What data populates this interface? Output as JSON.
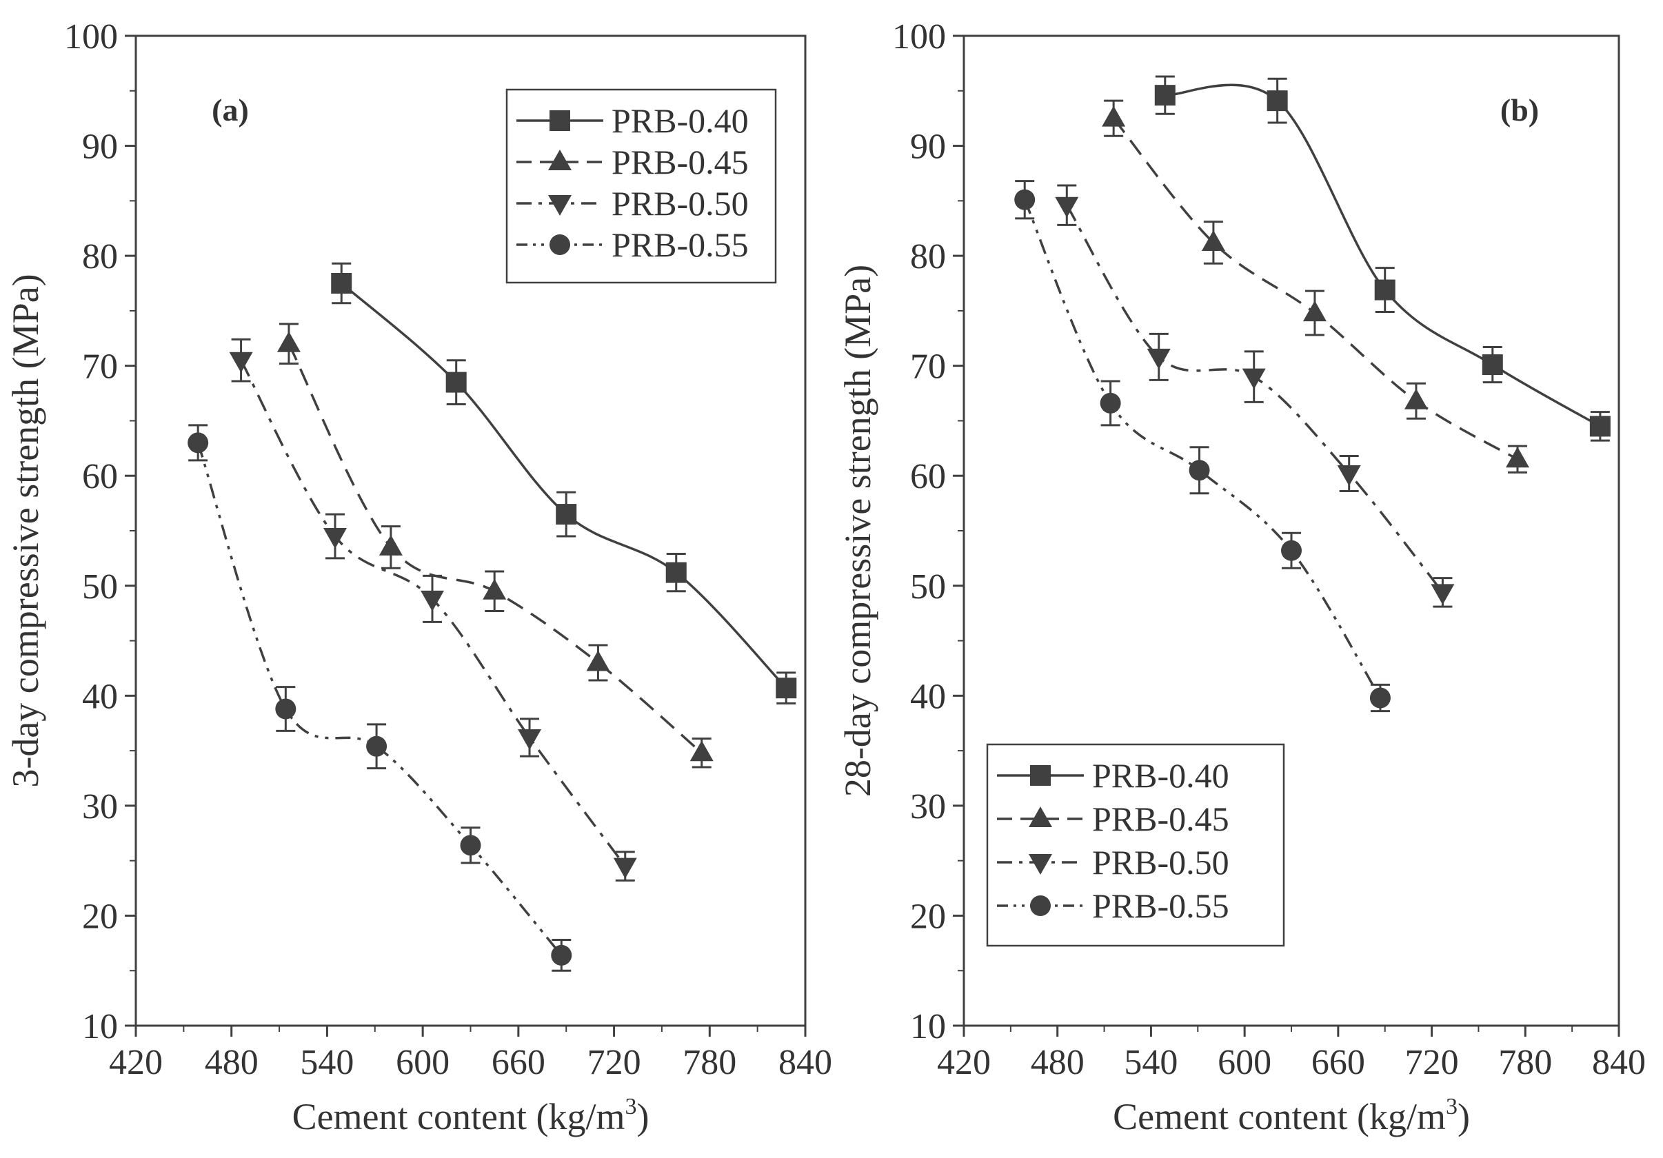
{
  "chart_data": [
    {
      "type": "line",
      "panel_label": "(a)",
      "xlabel": "Cement content (kg/m",
      "xlabel_superscript": "3",
      "xlabel_close": ")",
      "ylabel": "3-day compressive strength (MPa)",
      "xlim": [
        420,
        840
      ],
      "ylim": [
        10,
        100
      ],
      "xticks": [
        420,
        480,
        540,
        600,
        660,
        720,
        780,
        840
      ],
      "yticks": [
        10,
        20,
        30,
        40,
        50,
        60,
        70,
        80,
        90,
        100
      ],
      "legend_position": "top-right",
      "series": [
        {
          "name": "PRB-0.40",
          "marker": "square",
          "line_style": "solid",
          "x": [
            549,
            621,
            690,
            759,
            828
          ],
          "y": [
            77.5,
            68.5,
            56.5,
            51.2,
            40.7
          ],
          "error": [
            1.8,
            2.0,
            2.0,
            1.7,
            1.4
          ]
        },
        {
          "name": "PRB-0.45",
          "marker": "triangle-up",
          "line_style": "dash",
          "x": [
            516,
            580,
            645,
            710,
            775
          ],
          "y": [
            72.0,
            53.5,
            49.5,
            43.0,
            34.8
          ],
          "error": [
            1.8,
            1.9,
            1.8,
            1.6,
            1.3
          ]
        },
        {
          "name": "PRB-0.50",
          "marker": "triangle-down",
          "line_style": "dash-dot",
          "x": [
            486,
            545,
            606,
            667,
            727
          ],
          "y": [
            70.5,
            54.5,
            48.8,
            36.2,
            24.5
          ],
          "error": [
            1.9,
            2.0,
            2.1,
            1.7,
            1.3
          ]
        },
        {
          "name": "PRB-0.55",
          "marker": "circle",
          "line_style": "dash-dot-dot",
          "x": [
            459,
            514,
            571,
            630,
            687
          ],
          "y": [
            63.0,
            38.8,
            35.4,
            26.4,
            16.4
          ],
          "error": [
            1.6,
            2.0,
            2.0,
            1.6,
            1.4
          ]
        }
      ]
    },
    {
      "type": "line",
      "panel_label": "(b)",
      "xlabel": "Cement content (kg/m",
      "xlabel_superscript": "3",
      "xlabel_close": ")",
      "ylabel": "28-day compressive strength (MPa)",
      "xlim": [
        420,
        840
      ],
      "ylim": [
        10,
        100
      ],
      "xticks": [
        420,
        480,
        540,
        600,
        660,
        720,
        780,
        840
      ],
      "yticks": [
        10,
        20,
        30,
        40,
        50,
        60,
        70,
        80,
        90,
        100
      ],
      "legend_position": "bottom-left",
      "series": [
        {
          "name": "PRB-0.40",
          "marker": "square",
          "line_style": "solid",
          "x": [
            549,
            621,
            690,
            759,
            828
          ],
          "y": [
            94.6,
            94.1,
            76.9,
            70.1,
            64.5
          ],
          "error": [
            1.7,
            2.0,
            2.0,
            1.6,
            1.3
          ]
        },
        {
          "name": "PRB-0.45",
          "marker": "triangle-up",
          "line_style": "dash",
          "x": [
            516,
            580,
            645,
            710,
            775
          ],
          "y": [
            92.5,
            81.2,
            74.8,
            66.8,
            61.5
          ],
          "error": [
            1.6,
            1.9,
            2.0,
            1.6,
            1.2
          ]
        },
        {
          "name": "PRB-0.50",
          "marker": "triangle-down",
          "line_style": "dash-dot",
          "x": [
            486,
            545,
            606,
            667,
            727
          ],
          "y": [
            84.6,
            70.8,
            69.0,
            60.2,
            49.4
          ],
          "error": [
            1.8,
            2.1,
            2.3,
            1.6,
            1.3
          ]
        },
        {
          "name": "PRB-0.55",
          "marker": "circle",
          "line_style": "dash-dot-dot",
          "x": [
            459,
            514,
            571,
            630,
            687
          ],
          "y": [
            85.1,
            66.6,
            60.5,
            53.2,
            39.8
          ],
          "error": [
            1.7,
            2.0,
            2.1,
            1.6,
            1.2
          ]
        }
      ]
    }
  ]
}
